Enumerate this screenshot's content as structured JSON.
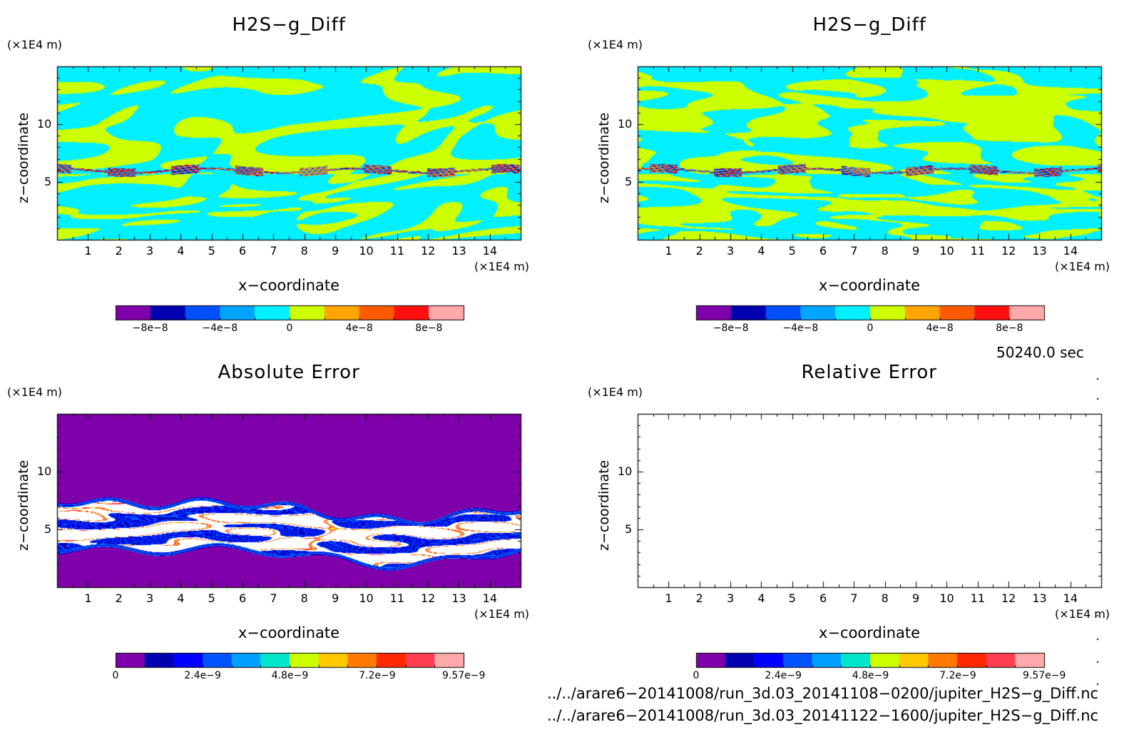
{
  "panels": [
    {
      "id": "panel-top-left",
      "title": "H2S−g_Diff",
      "field": "diff",
      "seed": 11,
      "xlabel": "x−coordinate",
      "ylabel": "z−coordinate",
      "x_unit": "(×1E4 m)",
      "y_unit": "(×1E4 m)",
      "colorbar_labels": [
        "−8e−8",
        "−4e−8",
        "0",
        "4e−8",
        "8e−8"
      ]
    },
    {
      "id": "panel-top-right",
      "title": "H2S−g_Diff",
      "field": "diff",
      "seed": 29,
      "xlabel": "x−coordinate",
      "ylabel": "z−coordinate",
      "x_unit": "(×1E4 m)",
      "y_unit": "(×1E4 m)",
      "colorbar_labels": [
        "−8e−8",
        "−4e−8",
        "0",
        "4e−8",
        "8e−8"
      ]
    },
    {
      "id": "panel-bottom-left",
      "title": "Absolute Error",
      "field": "abserr",
      "seed": 5,
      "xlabel": "x−coordinate",
      "ylabel": "z−coordinate",
      "x_unit": "(×1E4 m)",
      "y_unit": "(×1E4 m)",
      "colorbar_labels": [
        "0",
        "2.4e−9",
        "4.8e−9",
        "7.2e−9",
        "9.57e−9"
      ]
    },
    {
      "id": "panel-bottom-right",
      "title": "Relative Error",
      "field": "empty",
      "seed": 0,
      "xlabel": "x−coordinate",
      "ylabel": "z−coordinate",
      "x_unit": "(×1E4 m)",
      "y_unit": "(×1E4 m)",
      "colorbar_labels": [
        "0",
        "2.4e−9",
        "4.8e−9",
        "7.2e−9",
        "9.57e−9"
      ]
    }
  ],
  "time_label": "50240.0 sec",
  "file_paths": [
    "../../arare6−20141008/run_3d.03_20141108−0200/jupiter_H2S−g_Diff.nc",
    "../../arare6−20141008/run_3d.03_20141122−1600/jupiter_H2S−g_Diff.nc"
  ],
  "colors": {
    "diff_scale": [
      "#7f00aa",
      "#0000b0",
      "#0050ff",
      "#00a5ff",
      "#00f0ff",
      "#ccff00",
      "#ffa500",
      "#ff5a00",
      "#ff0f0f",
      "#ffaaaa"
    ],
    "abserr_scale": [
      "#7f00aa",
      "#0000b0",
      "#0000ff",
      "#0055ff",
      "#00a0ff",
      "#00e6cc",
      "#ccff00",
      "#ffc800",
      "#ff7800",
      "#ff2800",
      "#ff3c50",
      "#ffaaaa"
    ]
  },
  "chart_data": [
    {
      "type": "heatmap",
      "title": "H2S−g_Diff",
      "xlabel": "x−coordinate",
      "ylabel": "z−coordinate",
      "x_unit": "(×1E4 m)",
      "y_unit": "(×1E4 m)",
      "xlim": [
        0,
        15
      ],
      "ylim": [
        0,
        15
      ],
      "x_ticks": [
        1,
        2,
        3,
        4,
        5,
        6,
        7,
        8,
        9,
        10,
        11,
        12,
        13,
        14
      ],
      "y_ticks": [
        5,
        10
      ],
      "colorbar": {
        "min": -1e-07,
        "max": 1e-07,
        "levels": 10,
        "tick_values": [
          -8e-08,
          -4e-08,
          0,
          4e-08,
          8e-08
        ],
        "tick_labels": [
          "−8e−8",
          "−4e−8",
          "0",
          "4e−8",
          "8e−8"
        ]
      }
    },
    {
      "type": "heatmap",
      "title": "H2S−g_Diff",
      "xlabel": "x−coordinate",
      "ylabel": "z−coordinate",
      "x_unit": "(×1E4 m)",
      "y_unit": "(×1E4 m)",
      "xlim": [
        0,
        15
      ],
      "ylim": [
        0,
        15
      ],
      "x_ticks": [
        1,
        2,
        3,
        4,
        5,
        6,
        7,
        8,
        9,
        10,
        11,
        12,
        13,
        14
      ],
      "y_ticks": [
        5,
        10
      ],
      "colorbar": {
        "min": -1e-07,
        "max": 1e-07,
        "levels": 10,
        "tick_values": [
          -8e-08,
          -4e-08,
          0,
          4e-08,
          8e-08
        ],
        "tick_labels": [
          "−8e−8",
          "−4e−8",
          "0",
          "4e−8",
          "8e−8"
        ]
      }
    },
    {
      "type": "heatmap",
      "title": "Absolute Error",
      "xlabel": "x−coordinate",
      "ylabel": "z−coordinate",
      "x_unit": "(×1E4 m)",
      "y_unit": "(×1E4 m)",
      "xlim": [
        0,
        15
      ],
      "ylim": [
        0,
        15
      ],
      "x_ticks": [
        1,
        2,
        3,
        4,
        5,
        6,
        7,
        8,
        9,
        10,
        11,
        12,
        13,
        14
      ],
      "y_ticks": [
        5,
        10
      ],
      "colorbar": {
        "min": 0,
        "max": 9.57e-09,
        "levels": 12,
        "tick_values": [
          0,
          2.4e-09,
          4.8e-09,
          7.2e-09,
          9.57e-09
        ],
        "tick_labels": [
          "0",
          "2.4e−9",
          "4.8e−9",
          "7.2e−9",
          "9.57e−9"
        ]
      }
    },
    {
      "type": "heatmap",
      "title": "Relative Error",
      "xlabel": "x−coordinate",
      "ylabel": "z−coordinate",
      "x_unit": "(×1E4 m)",
      "y_unit": "(×1E4 m)",
      "xlim": [
        0,
        15
      ],
      "ylim": [
        0,
        15
      ],
      "x_ticks": [
        1,
        2,
        3,
        4,
        5,
        6,
        7,
        8,
        9,
        10,
        11,
        12,
        13,
        14
      ],
      "y_ticks": [
        5,
        10
      ],
      "colorbar": {
        "min": 0,
        "max": 9.57e-09,
        "levels": 12,
        "tick_values": [
          0,
          2.4e-09,
          4.8e-09,
          7.2e-09,
          9.57e-09
        ],
        "tick_labels": [
          "0",
          "2.4e−9",
          "4.8e−9",
          "7.2e−9",
          "9.57e−9"
        ]
      }
    }
  ]
}
